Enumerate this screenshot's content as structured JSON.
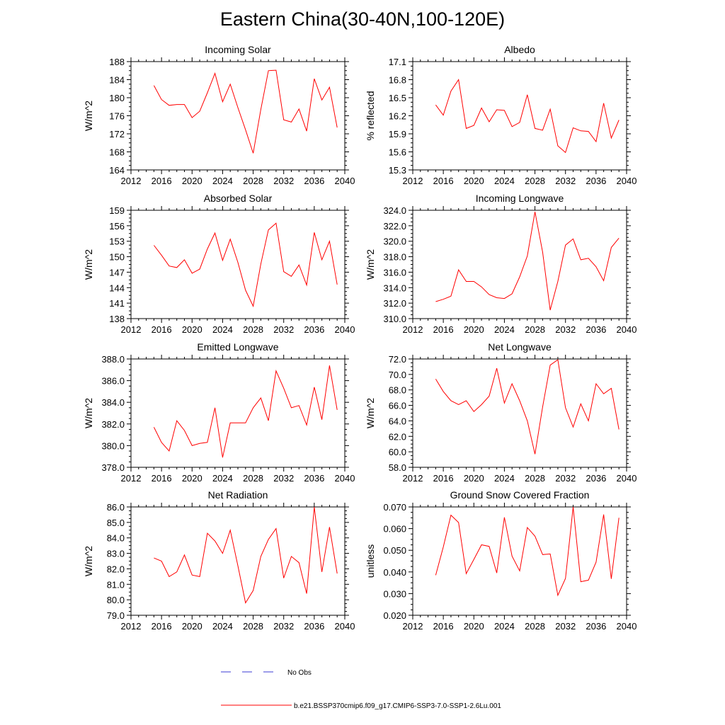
{
  "title": "Eastern China(30-40N,100-120E)",
  "legend": {
    "obs_label": "No Obs",
    "model_label": "b.e21.BSSP370cmip6.f09_g17.CMIP6-SSP3-7.0-SSP1-2.6Lu.001",
    "obs_color": "#3b3bd6",
    "model_color": "#ff0000"
  },
  "chart_data": [
    {
      "type": "line",
      "title": "Incoming Solar",
      "ylabel": "W/m^2",
      "xlim": [
        2012,
        2040
      ],
      "xticks": [
        2012,
        2016,
        2020,
        2024,
        2028,
        2032,
        2036,
        2040
      ],
      "ylim": [
        164,
        188
      ],
      "yticks": [
        "164",
        "168",
        "172",
        "176",
        "180",
        "184",
        "188"
      ],
      "x": [
        2015,
        2016,
        2017,
        2018,
        2019,
        2020,
        2021,
        2022,
        2023,
        2024,
        2025,
        2026,
        2027,
        2028,
        2029,
        2030,
        2031,
        2032,
        2033,
        2034,
        2035,
        2036,
        2037,
        2038,
        2039
      ],
      "series": [
        {
          "values": [
            182.7,
            179.6,
            178.3,
            178.5,
            178.5,
            175.6,
            177.0,
            181.1,
            185.4,
            179.1,
            183.0,
            177.8,
            172.9,
            167.7,
            177.4,
            186.0,
            186.1,
            175.1,
            174.6,
            177.5,
            172.6,
            184.2,
            179.5,
            182.3,
            173.4
          ]
        }
      ]
    },
    {
      "type": "line",
      "title": "Albedo",
      "ylabel": "% reflected",
      "xlim": [
        2012,
        2040
      ],
      "xticks": [
        2012,
        2016,
        2020,
        2024,
        2028,
        2032,
        2036,
        2040
      ],
      "ylim": [
        15.3,
        17.1
      ],
      "yticks": [
        "15.3",
        "15.6",
        "15.9",
        "16.2",
        "16.5",
        "16.8",
        "17.1"
      ],
      "x": [
        2015,
        2016,
        2017,
        2018,
        2019,
        2020,
        2021,
        2022,
        2023,
        2024,
        2025,
        2026,
        2027,
        2028,
        2029,
        2030,
        2031,
        2032,
        2033,
        2034,
        2035,
        2036,
        2037,
        2038,
        2039
      ],
      "series": [
        {
          "values": [
            16.38,
            16.21,
            16.61,
            16.8,
            15.99,
            16.04,
            16.33,
            16.1,
            16.3,
            16.29,
            16.02,
            16.09,
            16.55,
            15.99,
            15.96,
            16.31,
            15.7,
            15.59,
            16.0,
            15.95,
            15.94,
            15.77,
            16.41,
            15.83,
            16.13
          ]
        }
      ]
    },
    {
      "type": "line",
      "title": "Absorbed Solar",
      "ylabel": "W/m^2",
      "xlim": [
        2012,
        2040
      ],
      "xticks": [
        2012,
        2016,
        2020,
        2024,
        2028,
        2032,
        2036,
        2040
      ],
      "ylim": [
        138,
        159
      ],
      "yticks": [
        "138",
        "141",
        "144",
        "147",
        "150",
        "153",
        "156",
        "159"
      ],
      "x": [
        2015,
        2016,
        2017,
        2018,
        2019,
        2020,
        2021,
        2022,
        2023,
        2024,
        2025,
        2026,
        2027,
        2028,
        2029,
        2030,
        2031,
        2032,
        2033,
        2034,
        2035,
        2036,
        2037,
        2038,
        2039
      ],
      "series": [
        {
          "values": [
            152.2,
            150.3,
            148.2,
            147.9,
            149.4,
            146.8,
            147.6,
            151.5,
            154.6,
            149.3,
            153.4,
            148.9,
            143.5,
            140.4,
            148.6,
            155.2,
            156.5,
            147.1,
            146.2,
            148.4,
            144.5,
            154.7,
            149.4,
            153.0,
            144.6
          ]
        }
      ]
    },
    {
      "type": "line",
      "title": "Incoming Longwave",
      "ylabel": "W/m^2",
      "xlim": [
        2012,
        2040
      ],
      "xticks": [
        2012,
        2016,
        2020,
        2024,
        2028,
        2032,
        2036,
        2040
      ],
      "ylim": [
        310.0,
        324.0
      ],
      "yticks": [
        "310.0",
        "312.0",
        "314.0",
        "316.0",
        "318.0",
        "320.0",
        "322.0",
        "324.0"
      ],
      "x": [
        2015,
        2016,
        2017,
        2018,
        2019,
        2020,
        2021,
        2022,
        2023,
        2024,
        2025,
        2026,
        2027,
        2028,
        2029,
        2030,
        2031,
        2032,
        2033,
        2034,
        2035,
        2036,
        2037,
        2038,
        2039
      ],
      "series": [
        {
          "values": [
            312.2,
            312.5,
            312.9,
            316.3,
            314.8,
            314.8,
            314.1,
            313.1,
            312.7,
            312.6,
            313.2,
            315.4,
            318.1,
            323.8,
            318.6,
            311.1,
            314.8,
            319.5,
            320.3,
            317.6,
            317.8,
            316.7,
            314.9,
            319.2,
            320.4
          ]
        }
      ]
    },
    {
      "type": "line",
      "title": "Emitted Longwave",
      "ylabel": "W/m^2",
      "xlim": [
        2012,
        2040
      ],
      "xticks": [
        2012,
        2016,
        2020,
        2024,
        2028,
        2032,
        2036,
        2040
      ],
      "ylim": [
        378.0,
        388.0
      ],
      "yticks": [
        "378.0",
        "380.0",
        "382.0",
        "384.0",
        "386.0",
        "388.0"
      ],
      "x": [
        2015,
        2016,
        2017,
        2018,
        2019,
        2020,
        2021,
        2022,
        2023,
        2024,
        2025,
        2026,
        2027,
        2028,
        2029,
        2030,
        2031,
        2032,
        2033,
        2034,
        2035,
        2036,
        2037,
        2038,
        2039
      ],
      "series": [
        {
          "values": [
            381.7,
            380.3,
            379.5,
            382.3,
            381.4,
            380.0,
            380.2,
            380.3,
            383.5,
            378.9,
            382.1,
            382.1,
            382.1,
            383.5,
            384.4,
            382.3,
            386.9,
            385.3,
            383.5,
            383.7,
            381.9,
            385.4,
            382.4,
            387.4,
            383.3
          ]
        }
      ]
    },
    {
      "type": "line",
      "title": "Net Longwave",
      "ylabel": "W/m^2",
      "xlim": [
        2012,
        2040
      ],
      "xticks": [
        2012,
        2016,
        2020,
        2024,
        2028,
        2032,
        2036,
        2040
      ],
      "ylim": [
        58.0,
        72.0
      ],
      "yticks": [
        "58.0",
        "60.0",
        "62.0",
        "64.0",
        "66.0",
        "68.0",
        "70.0",
        "72.0"
      ],
      "x": [
        2015,
        2016,
        2017,
        2018,
        2019,
        2020,
        2021,
        2022,
        2023,
        2024,
        2025,
        2026,
        2027,
        2028,
        2029,
        2030,
        2031,
        2032,
        2033,
        2034,
        2035,
        2036,
        2037,
        2038,
        2039
      ],
      "series": [
        {
          "values": [
            69.4,
            67.8,
            66.6,
            66.1,
            66.6,
            65.2,
            66.1,
            67.2,
            70.8,
            66.3,
            68.8,
            66.6,
            64.0,
            59.7,
            65.8,
            71.2,
            71.9,
            65.7,
            63.2,
            66.2,
            64.0,
            68.8,
            67.5,
            68.2,
            62.9
          ]
        }
      ]
    },
    {
      "type": "line",
      "title": "Net Radiation",
      "ylabel": "W/m^2",
      "xlim": [
        2012,
        2040
      ],
      "xticks": [
        2012,
        2016,
        2020,
        2024,
        2028,
        2032,
        2036,
        2040
      ],
      "ylim": [
        79.0,
        86.0
      ],
      "yticks": [
        "79.0",
        "80.0",
        "81.0",
        "82.0",
        "83.0",
        "84.0",
        "85.0",
        "86.0"
      ],
      "x": [
        2015,
        2016,
        2017,
        2018,
        2019,
        2020,
        2021,
        2022,
        2023,
        2024,
        2025,
        2026,
        2027,
        2028,
        2029,
        2030,
        2031,
        2032,
        2033,
        2034,
        2035,
        2036,
        2037,
        2038,
        2039
      ],
      "series": [
        {
          "values": [
            82.7,
            82.5,
            81.5,
            81.8,
            82.9,
            81.6,
            81.5,
            84.3,
            83.8,
            83.0,
            84.5,
            82.2,
            79.8,
            80.6,
            82.8,
            83.9,
            84.6,
            81.4,
            82.8,
            82.4,
            80.4,
            86.0,
            81.8,
            84.7,
            81.7
          ]
        }
      ]
    },
    {
      "type": "line",
      "title": "Ground Snow Covered Fraction",
      "ylabel": "unitless",
      "xlim": [
        2012,
        2040
      ],
      "xticks": [
        2012,
        2016,
        2020,
        2024,
        2028,
        2032,
        2036,
        2040
      ],
      "ylim": [
        0.02,
        0.07
      ],
      "yticks": [
        "0.020",
        "0.030",
        "0.040",
        "0.050",
        "0.060",
        "0.070"
      ],
      "x": [
        2015,
        2016,
        2017,
        2018,
        2019,
        2020,
        2021,
        2022,
        2023,
        2024,
        2025,
        2026,
        2027,
        2028,
        2029,
        2030,
        2031,
        2032,
        2033,
        2034,
        2035,
        2036,
        2037,
        2038,
        2039
      ],
      "series": [
        {
          "values": [
            0.0385,
            0.0515,
            0.0662,
            0.0628,
            0.0392,
            0.0458,
            0.0525,
            0.0518,
            0.0395,
            0.0652,
            0.0473,
            0.0405,
            0.0605,
            0.0565,
            0.048,
            0.0483,
            0.0292,
            0.037,
            0.07,
            0.0355,
            0.0362,
            0.0445,
            0.0665,
            0.0368,
            0.065
          ]
        }
      ]
    }
  ]
}
